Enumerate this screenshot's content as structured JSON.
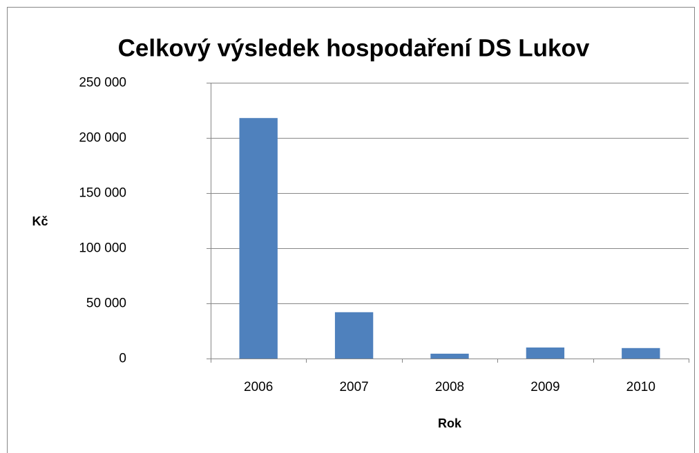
{
  "chart_data": {
    "type": "bar",
    "title": "Celkový výsledek hospodaření DS Lukov",
    "x_label": "Rok",
    "y_label": "Kč",
    "categories": [
      "2006",
      "2007",
      "2008",
      "2009",
      "2010"
    ],
    "values": [
      218000,
      42000,
      4400,
      10000,
      9500
    ],
    "color": "#4f81bd",
    "ylim": [
      0,
      250000
    ],
    "yticks": [
      {
        "value": 0,
        "label": "0"
      },
      {
        "value": 50000,
        "label": "50 000"
      },
      {
        "value": 100000,
        "label": "100 000"
      },
      {
        "value": 150000,
        "label": "150 000"
      },
      {
        "value": 200000,
        "label": "200 000"
      },
      {
        "value": 250000,
        "label": "250 000"
      }
    ],
    "grid": true
  }
}
